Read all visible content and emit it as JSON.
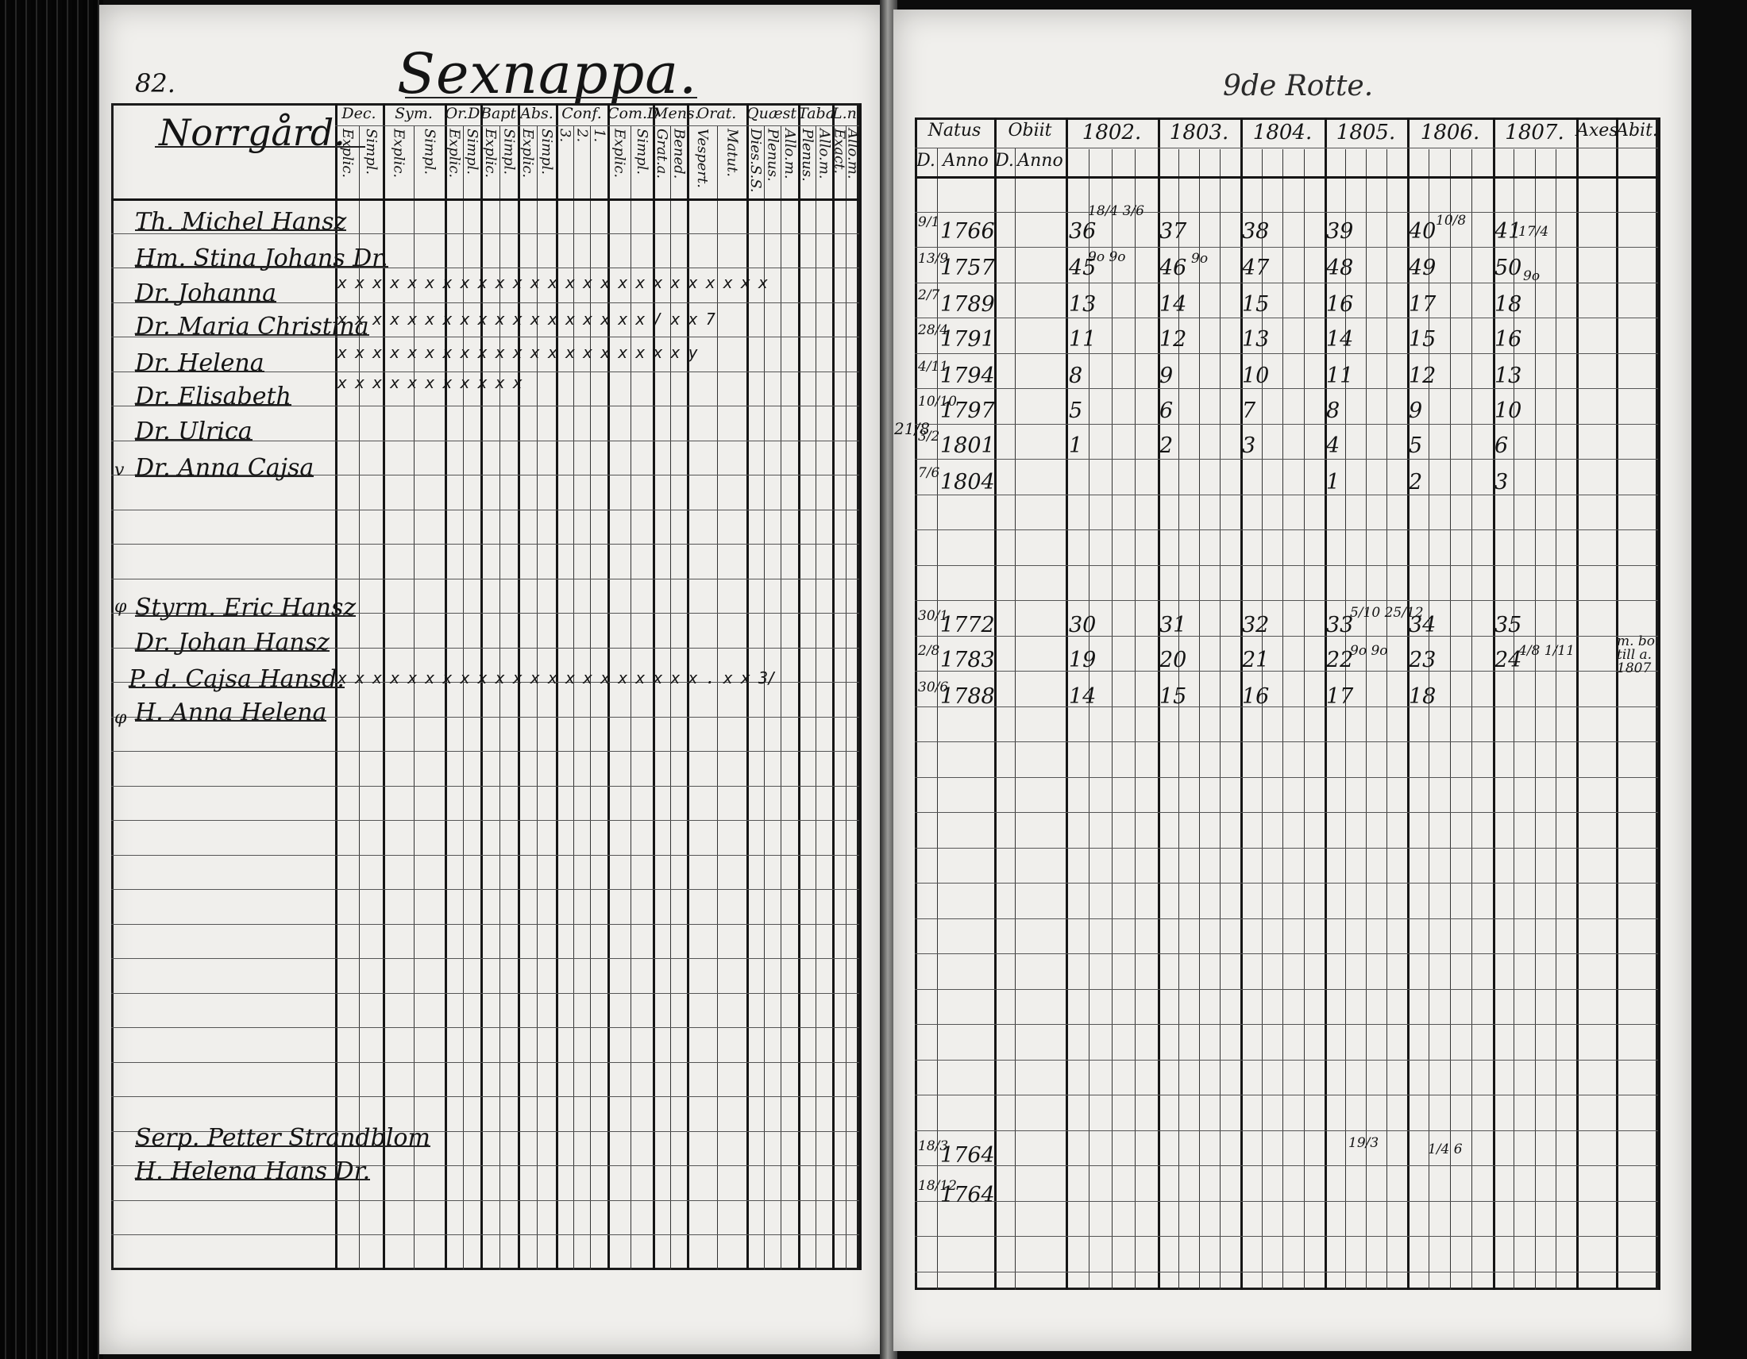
{
  "left_page": {
    "page_number": "82.",
    "farm_title": "Sexnappa.",
    "section_name": "Norrgård.",
    "column_headers": [
      "Dec.",
      "Sym.",
      "Or.D",
      "Bapt.",
      "Abs.",
      "Conf.",
      "Com.D",
      "Mens.",
      "Orat.",
      "Quæst.",
      "Taba",
      "L.n."
    ],
    "sub_headers": [
      [
        "Explic.",
        "Simpl."
      ],
      [
        "Explic.",
        "Simpl."
      ],
      [
        "Explic.",
        "Simpl."
      ],
      [
        "Explic.",
        "Simpl."
      ],
      [
        "Explic.",
        "Simpl."
      ],
      [
        "3.",
        "2.",
        "1."
      ],
      [
        "Explic.",
        "Simpl."
      ],
      [
        "Grat.a.",
        "Bened."
      ],
      [
        "Vespert.",
        "Matut."
      ],
      [
        "Dies.S.S.",
        "Plenus.",
        "Allo.m."
      ],
      [
        "Plenus.",
        "Allo.m."
      ],
      [
        "Exact.",
        "Allo.m."
      ]
    ],
    "residents": [
      "Th. Michel Hansz",
      "Hm. Stina Johans Dr.",
      "Dr. Johanna",
      "Dr. Maria Christina",
      "Dr. Helena",
      "Dr. Elisabeth",
      "Dr. Ulrica",
      "Dr. Anna Cajsa",
      "Styrm. Eric Hansz",
      "Dr. Johan Hansz",
      "P. d. Cajsa Hansd.",
      "H. Anna Helena",
      "Serp. Petter Strandblom",
      "H. Helena Hans Dr."
    ],
    "mark_rows": [
      "x x   x x x  x x  x x  x x  x x  x x  x x  x x  x x   x   x x  x",
      "x x   x x x  x x  x x  x x  x    x x  x x  x x  /    x x  7",
      "x x   x x x  x x  x x  x x  x    x x  x x  x x       x x  y",
      "x     x      x    x    x    x         x x  x x  x",
      "x x   x x x  x x  x x  x x  x x x  x x  x x  x x  x .   x x  3/"
    ],
    "margin_marks": [
      "v",
      "φ",
      "φ"
    ]
  },
  "right_page": {
    "heading": "9de Rotte.",
    "column_headers": [
      "Natus",
      "Obiit",
      "1802.",
      "1803.",
      "1804.",
      "1805.",
      "1806.",
      "1807.",
      "Axes",
      "Abit."
    ],
    "sub_headers": [
      "D.",
      "Anno",
      "D.",
      "Anno"
    ],
    "entries": [
      {
        "day": "9/1",
        "year": "1766",
        "ages": [
          "36",
          "37",
          "38",
          "39",
          "40",
          "41"
        ]
      },
      {
        "day": "13/9",
        "year": "1757",
        "ages": [
          "45",
          "46",
          "47",
          "48",
          "49",
          "50"
        ]
      },
      {
        "day": "2/7",
        "year": "1789",
        "ages": [
          "13",
          "14",
          "15",
          "16",
          "17",
          "18"
        ]
      },
      {
        "day": "28/4",
        "year": "1791",
        "ages": [
          "11",
          "12",
          "13",
          "14",
          "15",
          "16"
        ]
      },
      {
        "day": "4/11",
        "year": "1794",
        "ages": [
          "8",
          "9",
          "10",
          "11",
          "12",
          "13"
        ]
      },
      {
        "day": "10/10",
        "year": "1797",
        "ages": [
          "5",
          "6",
          "7",
          "8",
          "9",
          "10"
        ]
      },
      {
        "day": "3/2",
        "year": "1801",
        "ages": [
          "1",
          "2",
          "3",
          "4",
          "5",
          "6"
        ]
      },
      {
        "day": "7/6",
        "year": "1804",
        "ages": [
          "",
          "",
          "",
          "1",
          "2",
          "3"
        ]
      },
      {
        "day": "30/1",
        "year": "1772",
        "ages": [
          "30",
          "31",
          "32",
          "33",
          "34",
          "35"
        ]
      },
      {
        "day": "2/8",
        "year": "1783",
        "ages": [
          "19",
          "20",
          "21",
          "22",
          "23",
          "24"
        ]
      },
      {
        "day": "30/6",
        "year": "1788",
        "ages": [
          "14",
          "15",
          "16",
          "17",
          "18",
          ""
        ]
      },
      {
        "day": "18/3",
        "year": "1764",
        "ages": [
          "",
          "",
          "",
          "",
          "",
          ""
        ]
      },
      {
        "day": "18/12",
        "year": "1764",
        "ages": [
          "",
          "",
          "",
          "",
          "",
          ""
        ]
      }
    ],
    "annotations": {
      "margin_left": "21/8",
      "moved_note": "m. bo. till a. 1807",
      "ex_1802a": "18/4 3/6",
      "ex_1802b": "9o 9o",
      "ex_1803a": "9o",
      "ex_1806a": "10/8",
      "ex_1807a": "17/4",
      "ex_1807b": "9o",
      "ex_1805c": "5/10 25/12",
      "ex_1805d": "9o 9o",
      "ex_1807c": "4/8 1/11",
      "ex_1805e": "19/3",
      "ex_1806e": "1/4 6"
    }
  }
}
